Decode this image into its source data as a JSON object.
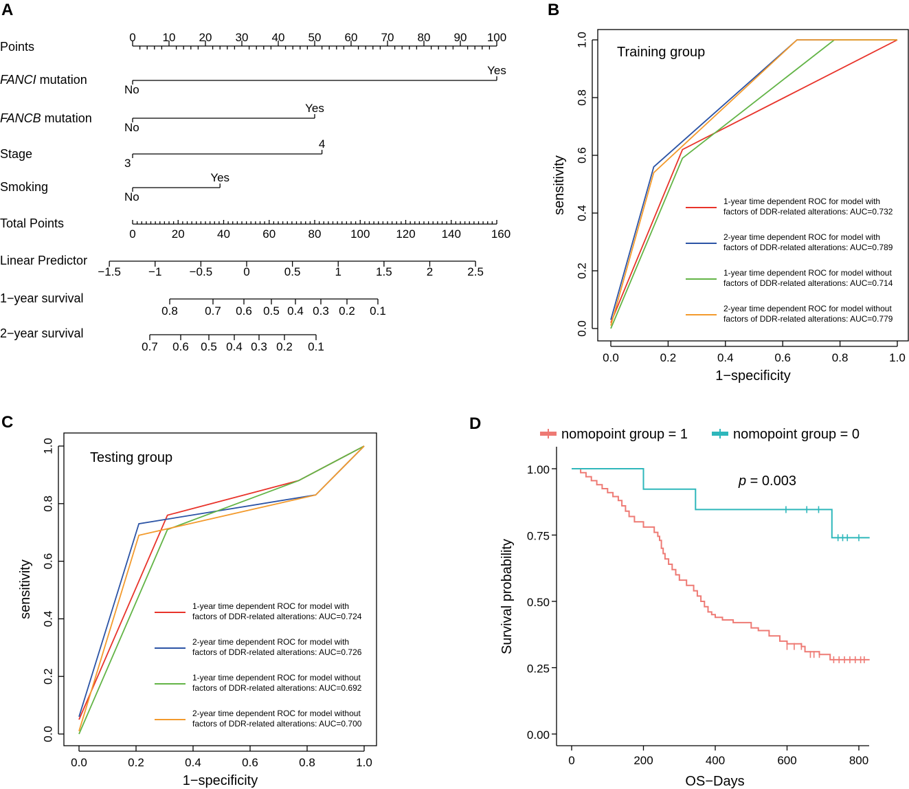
{
  "colors": {
    "red": "#E8332A",
    "blue": "#2B53A5",
    "green": "#62B446",
    "orange": "#F39A2C",
    "km1": "#EE7A74",
    "km0": "#2EB7BB"
  },
  "chart_data": [
    {
      "panel": "A",
      "type": "nomogram",
      "rows": [
        {
          "label": "Points",
          "ticks": [
            "0",
            "10",
            "20",
            "30",
            "40",
            "50",
            "60",
            "70",
            "80",
            "90",
            "100"
          ]
        },
        {
          "label_italic": "FANCI",
          "label": " mutation",
          "ends": [
            "No",
            "Yes"
          ],
          "points": [
            0,
            100
          ]
        },
        {
          "label_italic": "FANCB",
          "label": " mutation",
          "ends": [
            "No",
            "Yes"
          ],
          "points": [
            0,
            50
          ]
        },
        {
          "label": "Stage",
          "ends": [
            "3",
            "4"
          ],
          "points": [
            0,
            52
          ]
        },
        {
          "label": "Smoking",
          "ends": [
            "No",
            "Yes"
          ],
          "points": [
            0,
            24
          ]
        },
        {
          "label": "Total Points",
          "ticks": [
            "0",
            "20",
            "40",
            "60",
            "80",
            "100",
            "120",
            "140",
            "160"
          ]
        },
        {
          "label": "Linear Predictor",
          "ticks": [
            "−1.5",
            "−1",
            "−0.5",
            "0",
            "0.5",
            "1",
            "1.5",
            "2",
            "2.5"
          ]
        },
        {
          "label": "1−year survival",
          "ticks": [
            "0.8",
            "0.7",
            "0.6",
            "0.5",
            "0.4",
            "0.3",
            "0.2",
            "0.1"
          ]
        },
        {
          "label": "2−year survival",
          "ticks": [
            "0.7",
            "0.6",
            "0.5",
            "0.4",
            "0.3",
            "0.2",
            "0.1"
          ]
        }
      ]
    },
    {
      "panel": "B",
      "type": "line",
      "title": "Training group",
      "xlabel": "1−specificity",
      "ylabel": "sensitivity",
      "xlim": [
        0,
        1
      ],
      "ylim": [
        0,
        1
      ],
      "xticks": [
        "0.0",
        "0.2",
        "0.4",
        "0.6",
        "0.8",
        "1.0"
      ],
      "yticks": [
        "0.0",
        "0.2",
        "0.4",
        "0.6",
        "0.8",
        "1.0"
      ],
      "series": [
        {
          "name1": "1-year time dependent ROC for model with",
          "name2": "factors of DDR-related alterations: AUC=0.732",
          "color": "red",
          "x": [
            0,
            0.25,
            1
          ],
          "y": [
            0.02,
            0.62,
            1
          ]
        },
        {
          "name1": "2-year time dependent ROC for model with",
          "name2": "factors of DDR-related alterations: AUC=0.789",
          "color": "blue",
          "x": [
            0,
            0.15,
            0.65,
            1
          ],
          "y": [
            0.03,
            0.56,
            1,
            1
          ]
        },
        {
          "name1": "1-year time dependent ROC for model without",
          "name2": "factors of DDR-related alterations: AUC=0.714",
          "color": "green",
          "x": [
            0,
            0.25,
            0.78,
            1
          ],
          "y": [
            0,
            0.59,
            1,
            1
          ]
        },
        {
          "name1": "2-year time dependent ROC for model without",
          "name2": "factors of DDR-related alterations: AUC=0.779",
          "color": "orange",
          "x": [
            0,
            0.15,
            0.65,
            1
          ],
          "y": [
            0.01,
            0.54,
            1,
            1
          ]
        }
      ]
    },
    {
      "panel": "C",
      "type": "line",
      "title": "Testing group",
      "xlabel": "1−specificity",
      "ylabel": "sensitivity",
      "xlim": [
        0,
        1
      ],
      "ylim": [
        0,
        1
      ],
      "xticks": [
        "0.0",
        "0.2",
        "0.4",
        "0.6",
        "0.8",
        "1.0"
      ],
      "yticks": [
        "0.0",
        "0.2",
        "0.4",
        "0.6",
        "0.8",
        "1.0"
      ],
      "series": [
        {
          "name1": "1-year time dependent ROC for model with",
          "name2": "factors of DDR-related alterations: AUC=0.724",
          "color": "red",
          "x": [
            0,
            0.31,
            0.77,
            1
          ],
          "y": [
            0.05,
            0.76,
            0.88,
            1
          ]
        },
        {
          "name1": "2-year time dependent ROC for model with",
          "name2": "factors of DDR-related alterations: AUC=0.726",
          "color": "blue",
          "x": [
            0,
            0.21,
            0.83,
            1
          ],
          "y": [
            0.06,
            0.73,
            0.83,
            1
          ]
        },
        {
          "name1": "1-year time dependent ROC for model without",
          "name2": "factors of DDR-related alterations: AUC=0.692",
          "color": "green",
          "x": [
            0,
            0.31,
            0.77,
            1
          ],
          "y": [
            0,
            0.71,
            0.88,
            1
          ]
        },
        {
          "name1": "2-year time dependent ROC for model without",
          "name2": "factors of DDR-related alterations: AUC=0.700",
          "color": "orange",
          "x": [
            0,
            0.21,
            0.83,
            1
          ],
          "y": [
            0.01,
            0.69,
            0.83,
            1
          ]
        }
      ]
    },
    {
      "panel": "D",
      "type": "line",
      "title": "",
      "xlabel": "OS−Days",
      "ylabel": "Survival probability",
      "annotation_p": "p",
      "annotation_val": " = 0.003",
      "xlim": [
        0,
        830
      ],
      "ylim": [
        0,
        1
      ],
      "xticks": [
        "0",
        "200",
        "400",
        "600",
        "800"
      ],
      "yticks": [
        "0.00",
        "0.25",
        "0.50",
        "0.75",
        "1.00"
      ],
      "legend": [
        {
          "name": "nomopoint group = 1",
          "color": "km1"
        },
        {
          "name": "nomopoint group = 0",
          "color": "km0"
        }
      ],
      "series": [
        {
          "name": "nomopoint group = 1",
          "color": "km1",
          "x": [
            0,
            25,
            40,
            55,
            70,
            85,
            100,
            115,
            130,
            140,
            150,
            160,
            175,
            200,
            230,
            240,
            245,
            250,
            255,
            260,
            270,
            280,
            290,
            300,
            320,
            340,
            350,
            360,
            370,
            380,
            390,
            400,
            420,
            450,
            500,
            520,
            550,
            580,
            600,
            640,
            650,
            690,
            720,
            830
          ],
          "y": [
            1,
            0.985,
            0.97,
            0.955,
            0.94,
            0.925,
            0.91,
            0.895,
            0.88,
            0.86,
            0.84,
            0.82,
            0.8,
            0.78,
            0.76,
            0.745,
            0.73,
            0.7,
            0.68,
            0.66,
            0.64,
            0.62,
            0.6,
            0.58,
            0.56,
            0.54,
            0.52,
            0.5,
            0.48,
            0.46,
            0.45,
            0.44,
            0.43,
            0.42,
            0.4,
            0.39,
            0.37,
            0.35,
            0.34,
            0.33,
            0.31,
            0.3,
            0.28,
            0.28
          ],
          "censor_x": [
            600,
            620,
            640,
            665,
            675,
            690,
            730,
            745,
            760,
            775,
            790,
            805,
            815
          ],
          "censor_y": [
            0.33,
            0.33,
            0.33,
            0.3,
            0.3,
            0.3,
            0.28,
            0.28,
            0.28,
            0.28,
            0.28,
            0.28,
            0.28
          ]
        },
        {
          "name": "nomopoint group = 0",
          "color": "km0",
          "x": [
            0,
            200,
            345,
            725,
            830
          ],
          "y": [
            1,
            0.923,
            0.846,
            0.74,
            0.74
          ],
          "censor_x": [
            597,
            655,
            688,
            742,
            755,
            768,
            800
          ],
          "censor_y": [
            0.846,
            0.846,
            0.846,
            0.74,
            0.74,
            0.74,
            0.74
          ]
        }
      ]
    }
  ]
}
